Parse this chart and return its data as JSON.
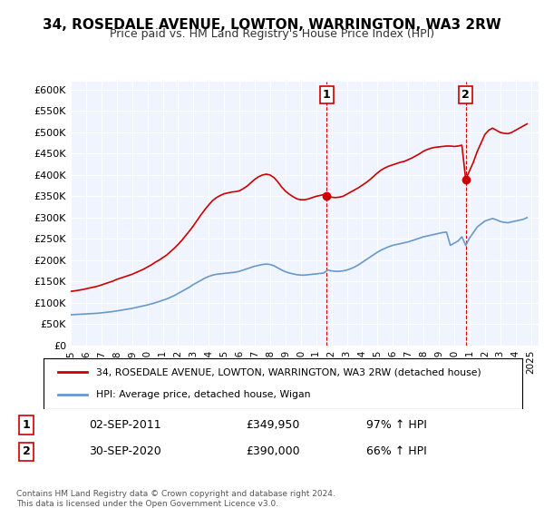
{
  "title": "34, ROSEDALE AVENUE, LOWTON, WARRINGTON, WA3 2RW",
  "subtitle": "Price paid vs. HM Land Registry's House Price Index (HPI)",
  "legend_line1": "34, ROSEDALE AVENUE, LOWTON, WARRINGTON, WA3 2RW (detached house)",
  "legend_line2": "HPI: Average price, detached house, Wigan",
  "annotation1_label": "1",
  "annotation1_date": "02-SEP-2011",
  "annotation1_price": "£349,950",
  "annotation1_hpi": "97% ↑ HPI",
  "annotation2_label": "2",
  "annotation2_date": "30-SEP-2020",
  "annotation2_price": "£390,000",
  "annotation2_hpi": "66% ↑ HPI",
  "footer": "Contains HM Land Registry data © Crown copyright and database right 2024.\nThis data is licensed under the Open Government Licence v3.0.",
  "red_line_color": "#cc0000",
  "blue_line_color": "#6699cc",
  "background_color": "#ffffff",
  "plot_bg_color": "#f0f4ff",
  "grid_color": "#ffffff",
  "ylim": [
    0,
    620000
  ],
  "yticks": [
    0,
    50000,
    100000,
    150000,
    200000,
    250000,
    300000,
    350000,
    400000,
    450000,
    500000,
    550000,
    600000
  ],
  "ytick_labels": [
    "£0",
    "£50K",
    "£100K",
    "£150K",
    "£200K",
    "£250K",
    "£300K",
    "£350K",
    "£400K",
    "£450K",
    "£500K",
    "£550K",
    "£600K"
  ],
  "xlim_start": 1995.0,
  "xlim_end": 2025.5,
  "xticks": [
    1995,
    1996,
    1997,
    1998,
    1999,
    2000,
    2001,
    2002,
    2003,
    2004,
    2005,
    2006,
    2007,
    2008,
    2009,
    2010,
    2011,
    2012,
    2013,
    2014,
    2015,
    2016,
    2017,
    2018,
    2019,
    2020,
    2021,
    2022,
    2023,
    2024,
    2025
  ],
  "sale1_x": 2011.67,
  "sale1_y": 349950,
  "sale2_x": 2020.75,
  "sale2_y": 390000,
  "red_x": [
    1995.0,
    1995.25,
    1995.5,
    1995.75,
    1996.0,
    1996.25,
    1996.5,
    1996.75,
    1997.0,
    1997.25,
    1997.5,
    1997.75,
    1998.0,
    1998.25,
    1998.5,
    1998.75,
    1999.0,
    1999.25,
    1999.5,
    1999.75,
    2000.0,
    2000.25,
    2000.5,
    2000.75,
    2001.0,
    2001.25,
    2001.5,
    2001.75,
    2002.0,
    2002.25,
    2002.5,
    2002.75,
    2003.0,
    2003.25,
    2003.5,
    2003.75,
    2004.0,
    2004.25,
    2004.5,
    2004.75,
    2005.0,
    2005.25,
    2005.5,
    2005.75,
    2006.0,
    2006.25,
    2006.5,
    2006.75,
    2007.0,
    2007.25,
    2007.5,
    2007.75,
    2008.0,
    2008.25,
    2008.5,
    2008.75,
    2009.0,
    2009.25,
    2009.5,
    2009.75,
    2010.0,
    2010.25,
    2010.5,
    2010.75,
    2011.0,
    2011.25,
    2011.5,
    2011.75,
    2012.0,
    2012.25,
    2012.5,
    2012.75,
    2013.0,
    2013.25,
    2013.5,
    2013.75,
    2014.0,
    2014.25,
    2014.5,
    2014.75,
    2015.0,
    2015.25,
    2015.5,
    2015.75,
    2016.0,
    2016.25,
    2016.5,
    2016.75,
    2017.0,
    2017.25,
    2017.5,
    2017.75,
    2018.0,
    2018.25,
    2018.5,
    2018.75,
    2019.0,
    2019.25,
    2019.5,
    2019.75,
    2020.0,
    2020.25,
    2020.5,
    2020.75,
    2021.0,
    2021.25,
    2021.5,
    2021.75,
    2022.0,
    2022.25,
    2022.5,
    2022.75,
    2023.0,
    2023.25,
    2023.5,
    2023.75,
    2024.0,
    2024.25,
    2024.5,
    2024.75
  ],
  "red_y": [
    127000,
    128000,
    129500,
    131000,
    133000,
    135000,
    137000,
    139000,
    142000,
    145000,
    148000,
    151000,
    155000,
    158000,
    161000,
    164000,
    167000,
    171000,
    175000,
    179000,
    184000,
    189000,
    195000,
    200000,
    206000,
    212000,
    220000,
    228000,
    237000,
    247000,
    258000,
    269000,
    281000,
    294000,
    307000,
    319000,
    330000,
    340000,
    347000,
    352000,
    356000,
    358000,
    360000,
    361000,
    363000,
    368000,
    374000,
    382000,
    390000,
    396000,
    400000,
    402000,
    400000,
    394000,
    384000,
    372000,
    362000,
    355000,
    349000,
    344000,
    342000,
    342000,
    344000,
    347000,
    350000,
    352000,
    354000,
    349950,
    348000,
    347000,
    348000,
    350000,
    355000,
    360000,
    365000,
    370000,
    376000,
    382000,
    389000,
    397000,
    405000,
    412000,
    417000,
    421000,
    424000,
    427000,
    430000,
    432000,
    436000,
    440000,
    445000,
    450000,
    456000,
    460000,
    463000,
    465000,
    466000,
    467000,
    468000,
    468000,
    467000,
    468000,
    470000,
    390000,
    410000,
    430000,
    455000,
    475000,
    495000,
    505000,
    510000,
    505000,
    500000,
    498000,
    497000,
    500000,
    505000,
    510000,
    515000,
    520000
  ],
  "blue_x": [
    1995.0,
    1995.25,
    1995.5,
    1995.75,
    1996.0,
    1996.25,
    1996.5,
    1996.75,
    1997.0,
    1997.25,
    1997.5,
    1997.75,
    1998.0,
    1998.25,
    1998.5,
    1998.75,
    1999.0,
    1999.25,
    1999.5,
    1999.75,
    2000.0,
    2000.25,
    2000.5,
    2000.75,
    2001.0,
    2001.25,
    2001.5,
    2001.75,
    2002.0,
    2002.25,
    2002.5,
    2002.75,
    2003.0,
    2003.25,
    2003.5,
    2003.75,
    2004.0,
    2004.25,
    2004.5,
    2004.75,
    2005.0,
    2005.25,
    2005.5,
    2005.75,
    2006.0,
    2006.25,
    2006.5,
    2006.75,
    2007.0,
    2007.25,
    2007.5,
    2007.75,
    2008.0,
    2008.25,
    2008.5,
    2008.75,
    2009.0,
    2009.25,
    2009.5,
    2009.75,
    2010.0,
    2010.25,
    2010.5,
    2010.75,
    2011.0,
    2011.25,
    2011.5,
    2011.75,
    2012.0,
    2012.25,
    2012.5,
    2012.75,
    2013.0,
    2013.25,
    2013.5,
    2013.75,
    2014.0,
    2014.25,
    2014.5,
    2014.75,
    2015.0,
    2015.25,
    2015.5,
    2015.75,
    2016.0,
    2016.25,
    2016.5,
    2016.75,
    2017.0,
    2017.25,
    2017.5,
    2017.75,
    2018.0,
    2018.25,
    2018.5,
    2018.75,
    2019.0,
    2019.25,
    2019.5,
    2019.75,
    2020.0,
    2020.25,
    2020.5,
    2020.75,
    2021.0,
    2021.25,
    2021.5,
    2021.75,
    2022.0,
    2022.25,
    2022.5,
    2022.75,
    2023.0,
    2023.25,
    2023.5,
    2023.75,
    2024.0,
    2024.25,
    2024.5,
    2024.75
  ],
  "blue_y": [
    72000,
    72500,
    73000,
    73500,
    74000,
    74500,
    75000,
    75500,
    76500,
    77500,
    78500,
    79500,
    81000,
    82500,
    84000,
    85500,
    87000,
    89000,
    91000,
    93000,
    95000,
    97500,
    100000,
    103000,
    106000,
    109000,
    113000,
    117000,
    122000,
    127000,
    132000,
    137000,
    143000,
    148000,
    153000,
    158000,
    162000,
    165000,
    167000,
    168000,
    169000,
    170000,
    171000,
    172000,
    174000,
    177000,
    180000,
    183000,
    186000,
    188000,
    190000,
    191000,
    190000,
    187000,
    182000,
    177000,
    173000,
    170000,
    168000,
    166000,
    165000,
    165000,
    166000,
    167000,
    168000,
    169000,
    170000,
    177000,
    175000,
    174000,
    174000,
    175000,
    177000,
    180000,
    184000,
    189000,
    195000,
    201000,
    207000,
    213000,
    219000,
    224000,
    228000,
    232000,
    235000,
    237000,
    239000,
    241000,
    243000,
    246000,
    249000,
    252000,
    255000,
    257000,
    259000,
    261000,
    263000,
    265000,
    266000,
    235000,
    240000,
    245000,
    255000,
    235000,
    252000,
    265000,
    278000,
    285000,
    292000,
    295000,
    298000,
    295000,
    291000,
    289000,
    288000,
    290000,
    292000,
    294000,
    296000,
    300000
  ]
}
